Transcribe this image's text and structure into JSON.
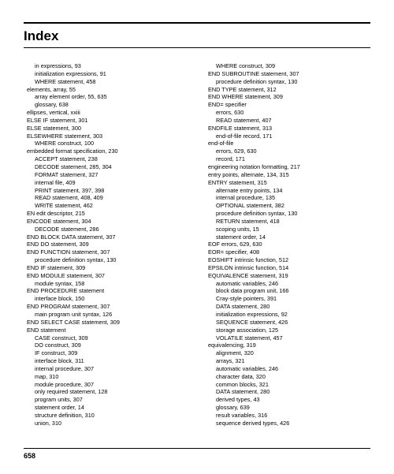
{
  "title": "Index",
  "page_number": "658",
  "left": [
    {
      "t": "in expressions, 93",
      "i": 1
    },
    {
      "t": "initialization expressions, 91",
      "i": 1
    },
    {
      "t": "WHERE statement, 458",
      "i": 1
    },
    {
      "t": "elements, array, 55",
      "i": 0
    },
    {
      "t": "array element order, 55, 635",
      "i": 1
    },
    {
      "t": "glossary, 638",
      "i": 1
    },
    {
      "t": "ellipses, vertical, xxiii",
      "i": 0
    },
    {
      "t": "ELSE IF statement, 301",
      "i": 0
    },
    {
      "t": "ELSE statement, 300",
      "i": 0
    },
    {
      "t": "ELSEWHERE statement, 303",
      "i": 0
    },
    {
      "t": "WHERE construct, 100",
      "i": 1
    },
    {
      "t": "embedded format specification, 230",
      "i": 0
    },
    {
      "t": "ACCEPT statement, 238",
      "i": 1
    },
    {
      "t": "DECODE statement, 285, 304",
      "i": 1
    },
    {
      "t": "FORMAT statement, 327",
      "i": 1
    },
    {
      "t": "internal file, 409",
      "i": 1
    },
    {
      "t": "PRINT statement, 397, 398",
      "i": 1
    },
    {
      "t": "READ statement, 408, 409",
      "i": 1
    },
    {
      "t": "WRITE statement, 462",
      "i": 1
    },
    {
      "t": "EN edit descriptor, 215",
      "i": 0
    },
    {
      "t": "ENCODE statement, 304",
      "i": 0
    },
    {
      "t": "DECODE statement, 286",
      "i": 1
    },
    {
      "t": "END BLOCK DATA statement, 307",
      "i": 0
    },
    {
      "t": "END DO statement, 309",
      "i": 0
    },
    {
      "t": "END FUNCTION statement, 307",
      "i": 0
    },
    {
      "t": "procedure definition syntax, 130",
      "i": 1
    },
    {
      "t": "END IF statement, 309",
      "i": 0
    },
    {
      "t": "END MODULE statement, 307",
      "i": 0
    },
    {
      "t": "module syntax, 158",
      "i": 1
    },
    {
      "t": "END PROCEDURE statement",
      "i": 0
    },
    {
      "t": "interface block, 150",
      "i": 1
    },
    {
      "t": "END PROGRAM statement, 307",
      "i": 0
    },
    {
      "t": "main program unit syntax, 126",
      "i": 1
    },
    {
      "t": "END SELECT CASE statement, 309",
      "i": 0
    },
    {
      "t": "END statement",
      "i": 0
    },
    {
      "t": "CASE construct, 309",
      "i": 1
    },
    {
      "t": "DO construct, 309",
      "i": 1
    },
    {
      "t": "IF construct, 309",
      "i": 1
    },
    {
      "t": "interface block, 311",
      "i": 1
    },
    {
      "t": "internal procedure, 307",
      "i": 1
    },
    {
      "t": "map, 310",
      "i": 1
    },
    {
      "t": "module procedure, 307",
      "i": 1
    },
    {
      "t": "only required statement, 128",
      "i": 1
    },
    {
      "t": "program units, 307",
      "i": 1
    },
    {
      "t": "statement order, 14",
      "i": 1
    },
    {
      "t": "structure definition, 310",
      "i": 1
    },
    {
      "t": "union, 310",
      "i": 1
    }
  ],
  "right": [
    {
      "t": "WHERE construct, 309",
      "i": 1
    },
    {
      "t": "END SUBROUTINE statement, 307",
      "i": 0
    },
    {
      "t": "procedure definition syntax, 130",
      "i": 1
    },
    {
      "t": "END TYPE statement, 312",
      "i": 0
    },
    {
      "t": "END WHERE statement, 309",
      "i": 0
    },
    {
      "t": "END= specifier",
      "i": 0
    },
    {
      "t": "errors, 630",
      "i": 1
    },
    {
      "t": "READ statement, 407",
      "i": 1
    },
    {
      "t": "ENDFILE statement, 313",
      "i": 0
    },
    {
      "t": "end-of-file record, 171",
      "i": 1
    },
    {
      "t": "end-of-file",
      "i": 0
    },
    {
      "t": "errors, 629, 630",
      "i": 1
    },
    {
      "t": "record, 171",
      "i": 1
    },
    {
      "t": "engineering notation formatting, 217",
      "i": 0
    },
    {
      "t": "entry points, alternate, 134, 315",
      "i": 0
    },
    {
      "t": "ENTRY statement, 315",
      "i": 0
    },
    {
      "t": "alternate entry points, 134",
      "i": 1
    },
    {
      "t": "internal procedure, 135",
      "i": 1
    },
    {
      "t": "OPTIONAL statement, 382",
      "i": 1
    },
    {
      "t": "procedure definition syntax, 130",
      "i": 1
    },
    {
      "t": "RETURN statement, 418",
      "i": 1
    },
    {
      "t": "scoping units, 15",
      "i": 1
    },
    {
      "t": "statement order, 14",
      "i": 1
    },
    {
      "t": "EOF errors, 629, 630",
      "i": 0
    },
    {
      "t": "EOR= specifier, 408",
      "i": 0
    },
    {
      "t": "EOSHIFT intrinsic function, 512",
      "i": 0
    },
    {
      "t": "EPSILON intrinsic function, 514",
      "i": 0
    },
    {
      "t": "EQUIVALENCE statement, 319",
      "i": 0
    },
    {
      "t": "automatic variables, 246",
      "i": 1
    },
    {
      "t": "block data program unit, 166",
      "i": 1
    },
    {
      "t": "Cray-style pointers, 391",
      "i": 1
    },
    {
      "t": "DATA statement, 280",
      "i": 1
    },
    {
      "t": "initialization expressions, 92",
      "i": 1
    },
    {
      "t": "SEQUENCE statement, 426",
      "i": 1
    },
    {
      "t": "storage association, 125",
      "i": 1
    },
    {
      "t": "VOLATILE statement, 457",
      "i": 1
    },
    {
      "t": "equivalencing, 319",
      "i": 0
    },
    {
      "t": "alignment, 320",
      "i": 1
    },
    {
      "t": "arrays, 321",
      "i": 1
    },
    {
      "t": "automatic variables, 246",
      "i": 1
    },
    {
      "t": "character data, 320",
      "i": 1
    },
    {
      "t": "common blocks, 321",
      "i": 1
    },
    {
      "t": "DATA statement, 280",
      "i": 1
    },
    {
      "t": "derived types, 43",
      "i": 1
    },
    {
      "t": "glossary, 639",
      "i": 1
    },
    {
      "t": "result variables, 316",
      "i": 1
    },
    {
      "t": "sequence derived types, 426",
      "i": 1
    }
  ]
}
